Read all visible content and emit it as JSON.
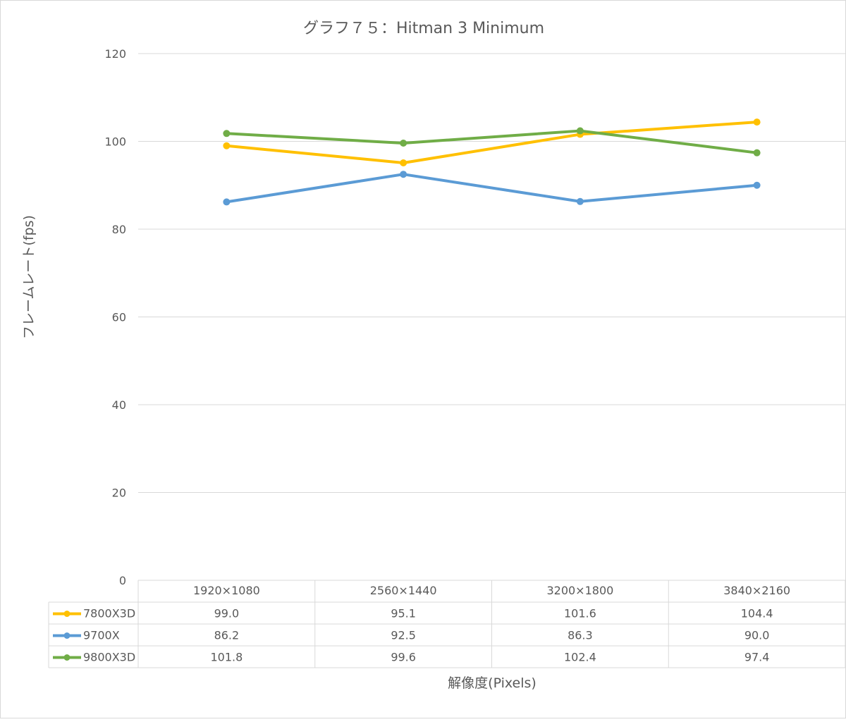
{
  "chart_data": {
    "type": "line",
    "title": "グラフ７５：Hitman 3 Minimum",
    "xlabel": "解像度(Pixels)",
    "ylabel": "フレームレート(fps)",
    "ylim": [
      0,
      120
    ],
    "yticks": [
      "0",
      "20",
      "40",
      "60",
      "80",
      "100",
      "120"
    ],
    "categories": [
      "1920×1080",
      "2560×1440",
      "3200×1800",
      "3840×2160"
    ],
    "grid": true,
    "legend": "data-table",
    "series": [
      {
        "name": "7800X3D",
        "color": "#FFC000",
        "values": [
          99.0,
          95.1,
          101.6,
          104.4
        ],
        "labels": [
          "99.0",
          "95.1",
          "101.6",
          "104.4"
        ]
      },
      {
        "name": "9700X",
        "color": "#5B9BD5",
        "values": [
          86.2,
          92.5,
          86.3,
          90.0
        ],
        "labels": [
          "86.2",
          "92.5",
          "86.3",
          "90.0"
        ]
      },
      {
        "name": "9800X3D",
        "color": "#70AD47",
        "values": [
          101.8,
          99.6,
          102.4,
          97.4
        ],
        "labels": [
          "101.8",
          "99.6",
          "102.4",
          "97.4"
        ]
      }
    ]
  }
}
